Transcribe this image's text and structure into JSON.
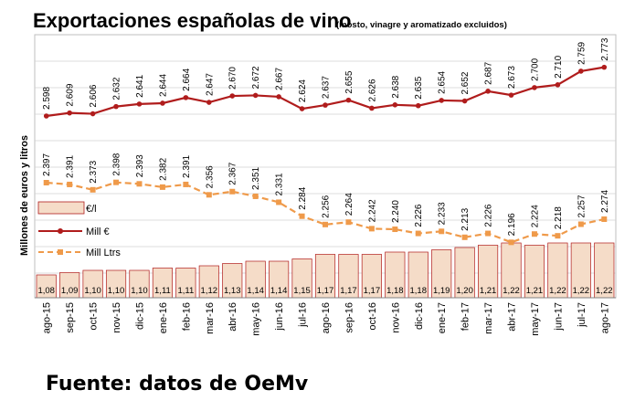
{
  "chart_data": {
    "type": "bar+line",
    "title": "Exportaciones españolas de vino",
    "subtitle": "(mosto, vinagre y aromatizado excluidos)",
    "ylabel": "Millones de euros y litros",
    "source": "Fuente: datos de OeMv",
    "categories": [
      "ago-15",
      "sep-15",
      "oct-15",
      "nov-15",
      "dic-15",
      "ene-16",
      "feb-16",
      "mar-16",
      "abr-16",
      "may-16",
      "jun-16",
      "jul-16",
      "ago-16",
      "sep-16",
      "oct-16",
      "nov-16",
      "dic-16",
      "ene-17",
      "feb-17",
      "mar-17",
      "abr-17",
      "may-17",
      "jun-17",
      "jul-17",
      "ago-17"
    ],
    "series": [
      {
        "name": "€/l",
        "kind": "bar",
        "color": "#f5dcc8",
        "values": [
          1.08,
          1.09,
          1.1,
          1.1,
          1.1,
          1.11,
          1.11,
          1.12,
          1.13,
          1.14,
          1.14,
          1.15,
          1.17,
          1.17,
          1.17,
          1.18,
          1.18,
          1.19,
          1.2,
          1.21,
          1.22,
          1.21,
          1.22,
          1.22,
          1.22
        ],
        "labels": [
          "1,08",
          "1,09",
          "1,10",
          "1,10",
          "1,10",
          "1,11",
          "1,11",
          "1,12",
          "1,13",
          "1,14",
          "1,14",
          "1,15",
          "1,17",
          "1,17",
          "1,17",
          "1,18",
          "1,18",
          "1,19",
          "1,20",
          "1,21",
          "1,22",
          "1,21",
          "1,22",
          "1,22",
          "1,22"
        ]
      },
      {
        "name": "Mill €",
        "kind": "line",
        "color": "#b01c1c",
        "values": [
          2598,
          2609,
          2606,
          2632,
          2641,
          2644,
          2664,
          2647,
          2670,
          2672,
          2667,
          2624,
          2637,
          2655,
          2626,
          2638,
          2635,
          2654,
          2652,
          2687,
          2673,
          2700,
          2710,
          2759,
          2773
        ],
        "labels": [
          "2.598",
          "2.609",
          "2.606",
          "2.632",
          "2.641",
          "2.644",
          "2.664",
          "2.647",
          "2.670",
          "2.672",
          "2.667",
          "2.624",
          "2.637",
          "2.655",
          "2.626",
          "2.638",
          "2.635",
          "2.654",
          "2.652",
          "2.687",
          "2.673",
          "2.700",
          "2.710",
          "2.759",
          "2.773"
        ]
      },
      {
        "name": "Mill Ltrs",
        "kind": "dashed-line",
        "color": "#ef9a4a",
        "values": [
          2397,
          2391,
          2373,
          2398,
          2393,
          2382,
          2391,
          2356,
          2367,
          2351,
          2331,
          2284,
          2256,
          2264,
          2242,
          2240,
          2226,
          2233,
          2213,
          2226,
          2196,
          2224,
          2218,
          2257,
          2274
        ],
        "labels": [
          "2.397",
          "2.391",
          "2.373",
          "2.398",
          "2.393",
          "2.382",
          "2.391",
          "2.356",
          "2.367",
          "2.351",
          "2.331",
          "2.284",
          "2.256",
          "2.264",
          "2.242",
          "2.240",
          "2.226",
          "2.233",
          "2.213",
          "2.226",
          "2.196",
          "2.224",
          "2.218",
          "2.257",
          "2.274"
        ]
      }
    ],
    "legend": [
      "€/l",
      "Mill €",
      "Mill Ltrs"
    ],
    "legend_position": "left"
  }
}
